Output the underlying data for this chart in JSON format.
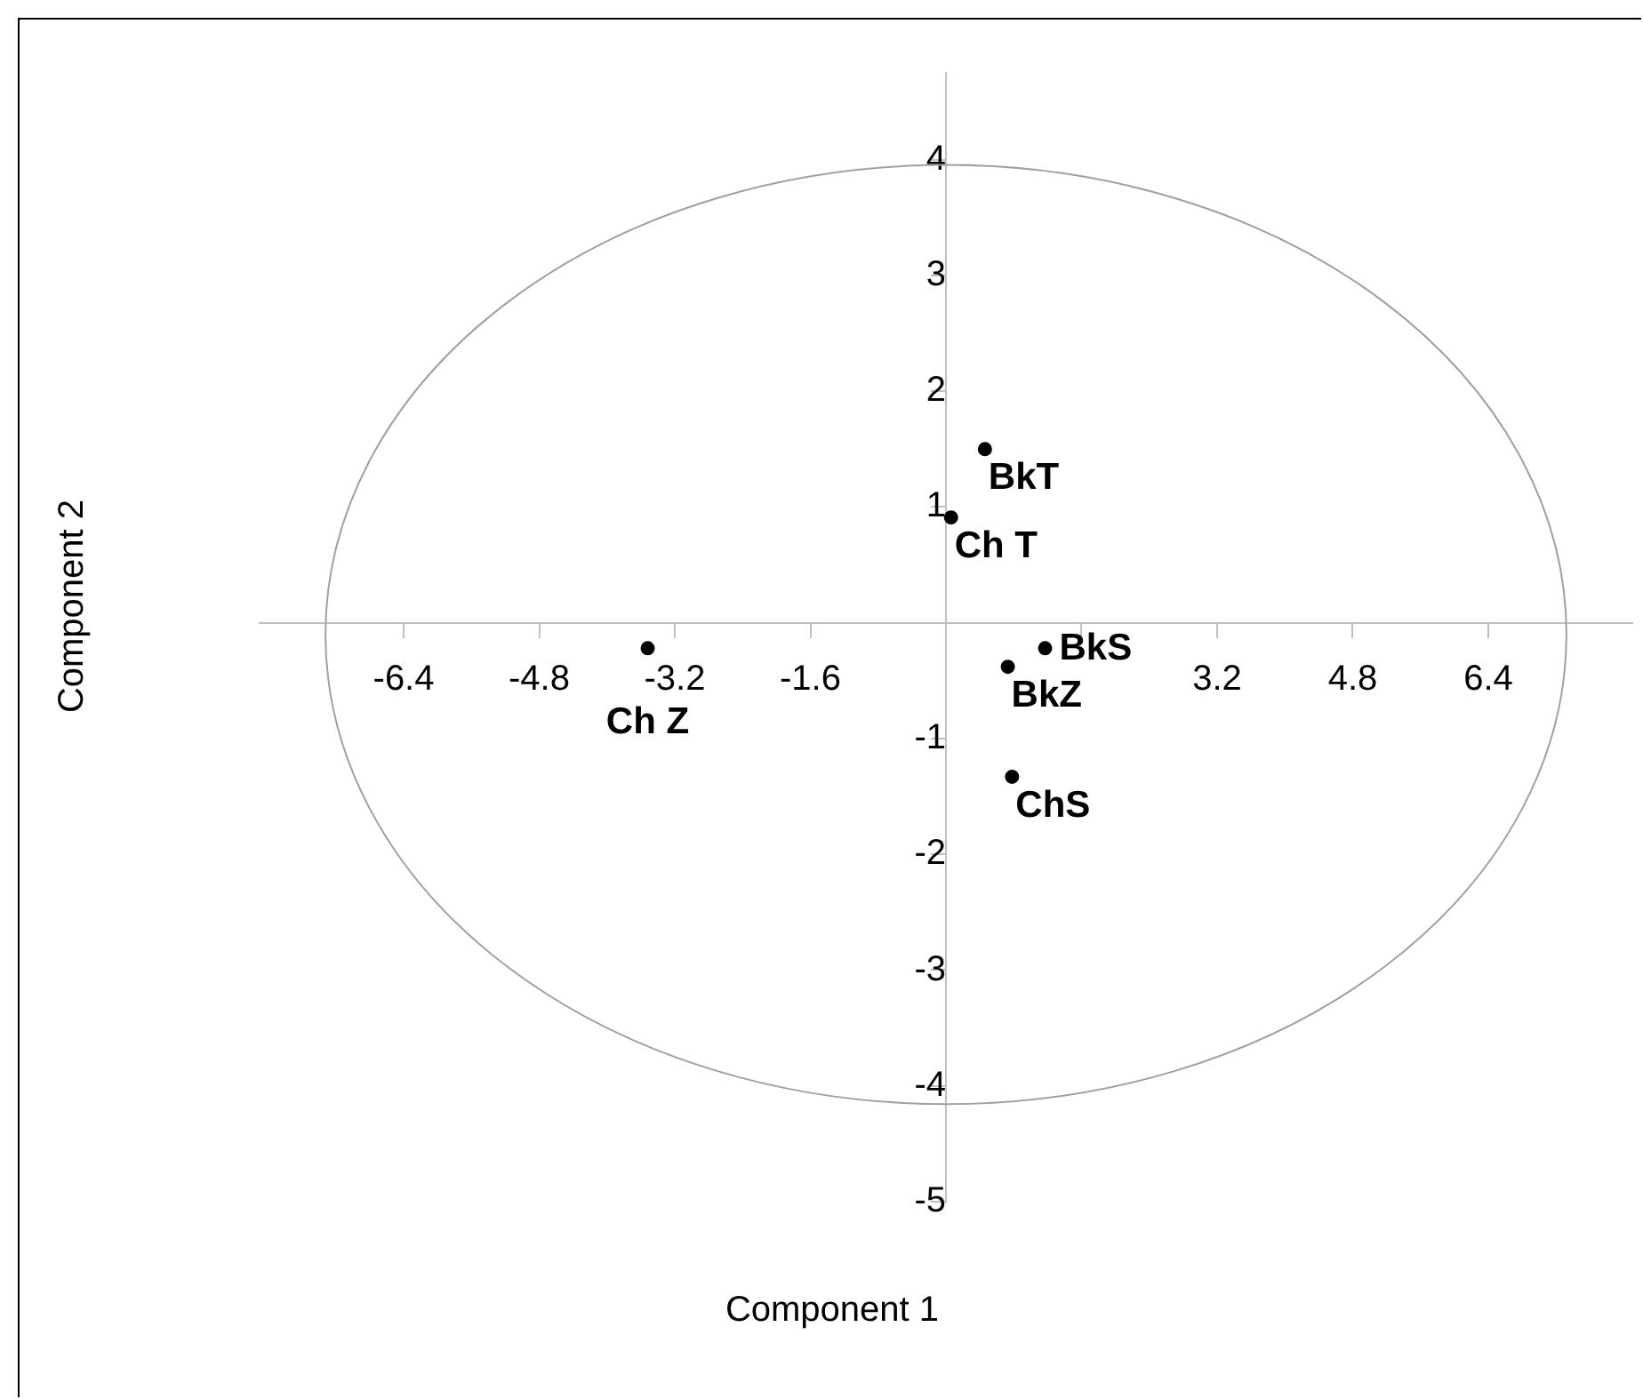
{
  "chart_data": {
    "type": "scatter",
    "xlabel": "Component 1",
    "ylabel": "Component 2",
    "x": [
      0.46,
      0.06,
      0.73,
      1.17,
      0.78,
      -3.52
    ],
    "values": [
      1.5,
      0.91,
      -0.38,
      -0.22,
      -1.33,
      -0.22
    ],
    "color": "#000000",
    "marker": "circle",
    "legend": false,
    "grid": false,
    "xlim": [
      -8.1,
      8.1
    ],
    "ylim": [
      -5,
      4.75
    ],
    "xticks": [
      -6.4,
      -4.8,
      -3.2,
      -1.6,
      {
        "value": 1.6,
        "label": null
      },
      3.2,
      4.8,
      6.4
    ],
    "yticks": [
      -5,
      -4,
      -3,
      -2,
      -1,
      1,
      2,
      3,
      4
    ],
    "annotations": [
      {
        "text": "BkT",
        "x": 0.46,
        "y": 1.5
      },
      {
        "text": "Ch T",
        "x": 0.06,
        "y": 0.91
      },
      {
        "text": "BkZ",
        "x": 0.73,
        "y": -0.38
      },
      {
        "text": "BkS",
        "x": 1.17,
        "y": -0.22
      },
      {
        "text": "ChS",
        "x": 0.78,
        "y": -1.33
      },
      {
        "text": "Ch Z",
        "x": -3.52,
        "y": -0.22
      }
    ]
  }
}
